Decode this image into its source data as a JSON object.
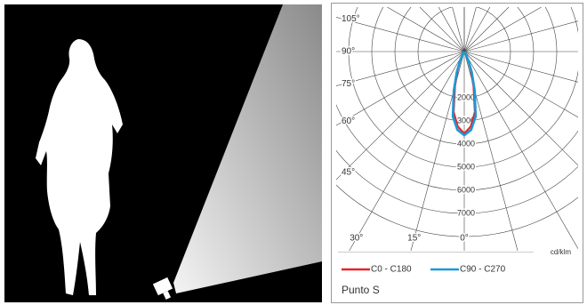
{
  "chart_data": {
    "type": "polar",
    "r_unit": "cd/klm",
    "rlim": [
      0,
      8000
    ],
    "rticks": [
      2000,
      3000,
      4000,
      5000,
      6000,
      7000
    ],
    "angle_ticks": [
      {
        "value": 105,
        "label": "105°"
      },
      {
        "value": 90,
        "label": "90°"
      },
      {
        "value": 75,
        "label": "75°"
      },
      {
        "value": 60,
        "label": "60°"
      },
      {
        "value": 45,
        "label": "45°"
      },
      {
        "value": 30,
        "label": "30°"
      },
      {
        "value": 15,
        "label": "15°"
      },
      {
        "value": 0,
        "label": "0°"
      }
    ],
    "series": [
      {
        "name": "C0 - C180",
        "color": "#e3262b",
        "angles": [
          -40,
          -30,
          -25,
          -20,
          -15,
          -10,
          -5,
          0,
          5,
          10,
          15,
          20,
          25,
          30,
          40
        ],
        "values": [
          0,
          120,
          350,
          800,
          1550,
          2650,
          3250,
          3550,
          3250,
          2650,
          1550,
          800,
          350,
          120,
          0
        ]
      },
      {
        "name": "C90 - C270",
        "color": "#1a9ad6",
        "angles": [
          -40,
          -30,
          -25,
          -20,
          -15,
          -10,
          -5,
          0,
          5,
          10,
          15,
          20,
          25,
          30,
          40
        ],
        "values": [
          0,
          150,
          420,
          950,
          1750,
          2850,
          3400,
          3620,
          3400,
          2850,
          1750,
          950,
          420,
          150,
          0
        ]
      }
    ],
    "footer": "Punto S"
  }
}
